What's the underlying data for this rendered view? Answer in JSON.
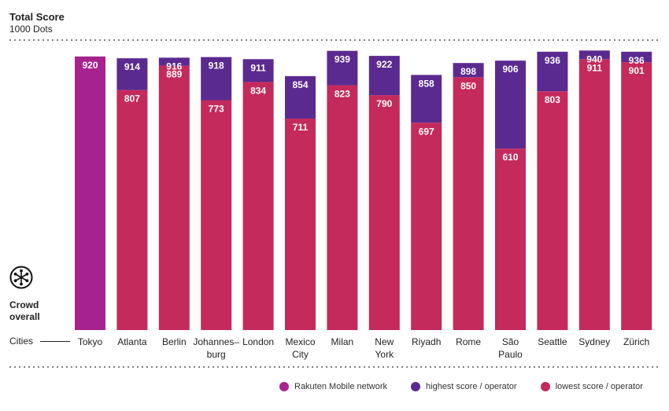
{
  "colors": {
    "rakuten": "#A6238F",
    "highest": "#5B2A90",
    "lowest": "#C42A5C",
    "divider": "#555555"
  },
  "header": {
    "title": "Total Score",
    "subtitle": "1000 Dots"
  },
  "crowd": {
    "icon": "crowd-icon",
    "label": "Crowd overall"
  },
  "axis": {
    "cities_label": "Cities"
  },
  "legend": [
    {
      "label": "Rakuten Mobile network",
      "color_key": "rakuten"
    },
    {
      "label": "highest score / operator",
      "color_key": "highest"
    },
    {
      "label": "lowest score / operator",
      "color_key": "lowest"
    }
  ],
  "chart_data": {
    "type": "bar",
    "title": "Total Score",
    "subtitle": "1000 Dots",
    "ylim": [
      0,
      1000
    ],
    "grid": false,
    "legend_position": "bottom-right",
    "categories": [
      "Tokyo",
      "Atlanta",
      "Berlin",
      "Johannes–burg",
      "London",
      "Mexico City",
      "Milan",
      "New York",
      "Riyadh",
      "Rome",
      "São Paulo",
      "Seattle",
      "Sydney",
      "Zürich"
    ],
    "category_lines": [
      [
        "Tokyo"
      ],
      [
        "Atlanta"
      ],
      [
        "Berlin"
      ],
      [
        "Johannes–",
        "burg"
      ],
      [
        "London"
      ],
      [
        "Mexico",
        "City"
      ],
      [
        "Milan"
      ],
      [
        "New",
        "York"
      ],
      [
        "Riyadh"
      ],
      [
        "Rome"
      ],
      [
        "São",
        "Paulo"
      ],
      [
        "Seattle"
      ],
      [
        "Sydney"
      ],
      [
        "Zürich"
      ]
    ],
    "series": [
      {
        "name": "Rakuten Mobile network",
        "values": [
          920,
          null,
          null,
          null,
          null,
          null,
          null,
          null,
          null,
          null,
          null,
          null,
          null,
          null
        ]
      },
      {
        "name": "highest score / operator",
        "values": [
          null,
          914,
          916,
          918,
          911,
          854,
          939,
          922,
          858,
          898,
          906,
          936,
          940,
          936
        ]
      },
      {
        "name": "lowest score / operator",
        "values": [
          null,
          807,
          889,
          773,
          834,
          711,
          823,
          790,
          697,
          850,
          610,
          803,
          911,
          901
        ]
      }
    ]
  }
}
